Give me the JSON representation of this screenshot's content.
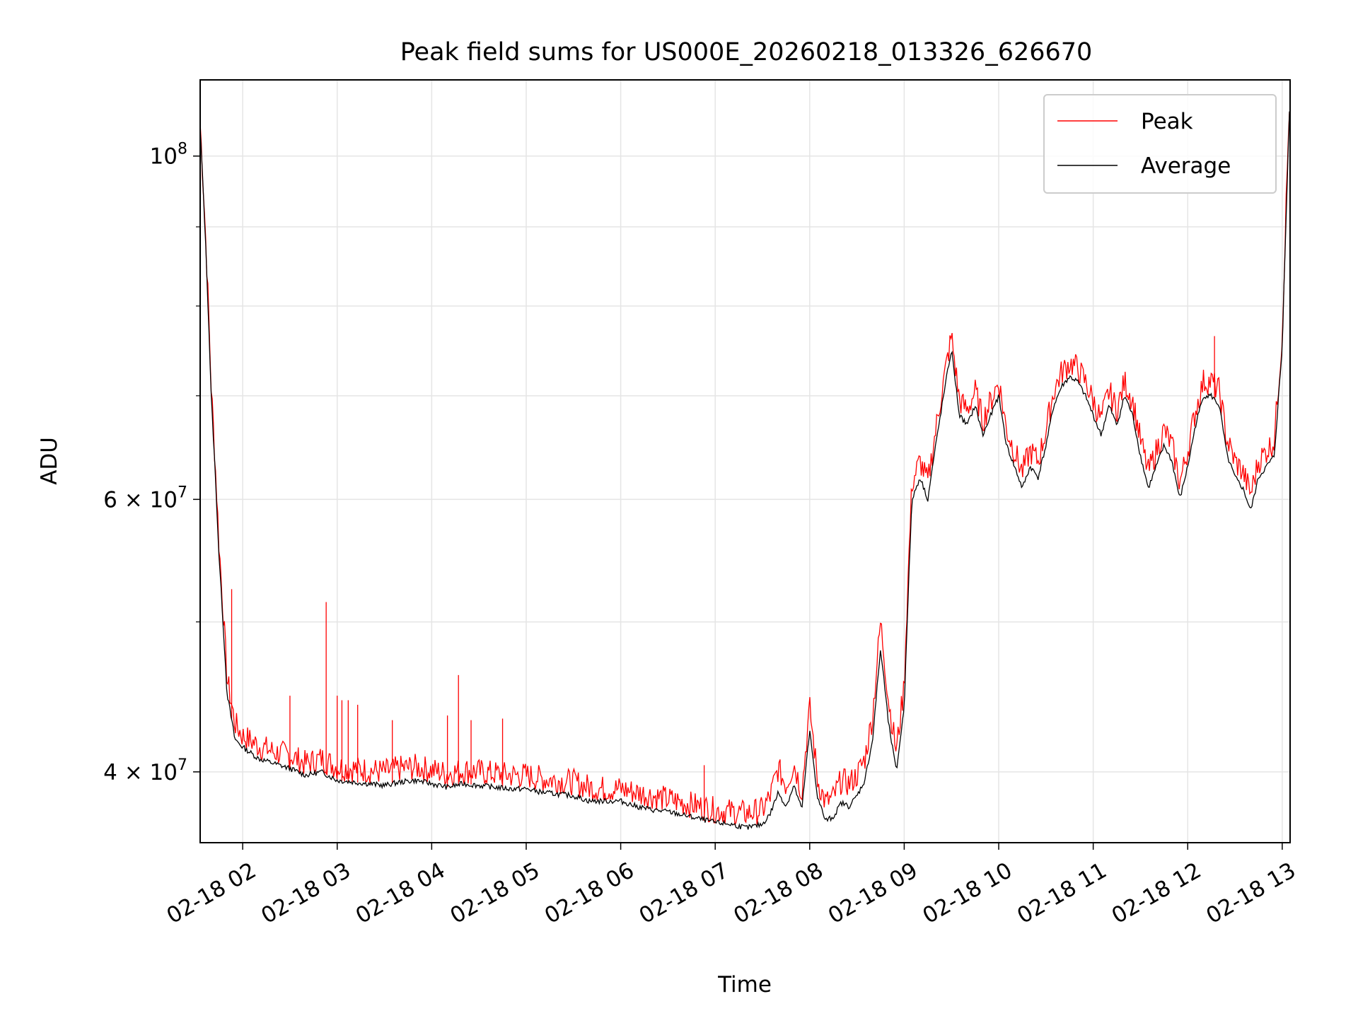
{
  "chart_data": {
    "type": "line",
    "title": "Peak field sums for US000E_20260218_013326_626670",
    "xlabel": "Time",
    "ylabel": "ADU",
    "yscale": "log",
    "ylim": [
      36000000,
      112000000
    ],
    "xlim": [
      "02-18 01:33",
      "02-18 13:05"
    ],
    "grid": true,
    "legend_position": "top-right",
    "x_ticks": [
      "02-18 02",
      "02-18 03",
      "02-18 04",
      "02-18 05",
      "02-18 06",
      "02-18 07",
      "02-18 08",
      "02-18 09",
      "02-18 10",
      "02-18 11",
      "02-18 12",
      "02-18 13"
    ],
    "y_ticks": [
      {
        "value": 40000000,
        "mantissa": "4",
        "times": "×",
        "base": "10",
        "exp": "7"
      },
      {
        "value": 60000000,
        "mantissa": "6",
        "times": "×",
        "base": "10",
        "exp": "7"
      },
      {
        "value": 100000000,
        "mantissa": "",
        "times": "",
        "base": "10",
        "exp": "8"
      }
    ],
    "series": [
      {
        "name": "Peak",
        "color": "#ff0000"
      },
      {
        "name": "Average",
        "color": "#000000"
      }
    ],
    "x": [
      "01:33",
      "01:36",
      "01:40",
      "01:45",
      "01:50",
      "01:55",
      "02:00",
      "02:10",
      "02:20",
      "02:30",
      "02:40",
      "02:50",
      "03:00",
      "03:10",
      "03:20",
      "03:30",
      "03:40",
      "03:50",
      "04:00",
      "04:10",
      "04:20",
      "04:30",
      "04:40",
      "04:50",
      "05:00",
      "05:10",
      "05:20",
      "05:30",
      "05:40",
      "05:50",
      "06:00",
      "06:10",
      "06:20",
      "06:30",
      "06:40",
      "06:50",
      "07:00",
      "07:10",
      "07:20",
      "07:30",
      "07:35",
      "07:40",
      "07:45",
      "07:50",
      "07:55",
      "08:00",
      "08:05",
      "08:10",
      "08:15",
      "08:20",
      "08:25",
      "08:30",
      "08:35",
      "08:40",
      "08:45",
      "08:50",
      "08:55",
      "09:00",
      "09:05",
      "09:10",
      "09:15",
      "09:20",
      "09:25",
      "09:30",
      "09:35",
      "09:40",
      "09:45",
      "09:50",
      "09:55",
      "10:00",
      "10:05",
      "10:10",
      "10:15",
      "10:20",
      "10:25",
      "10:30",
      "10:35",
      "10:40",
      "10:45",
      "10:50",
      "10:55",
      "11:00",
      "11:05",
      "11:10",
      "11:15",
      "11:20",
      "11:25",
      "11:30",
      "11:35",
      "11:40",
      "11:45",
      "11:50",
      "11:55",
      "12:00",
      "12:05",
      "12:10",
      "12:15",
      "12:20",
      "12:25",
      "12:30",
      "12:35",
      "12:40",
      "12:45",
      "12:50",
      "12:55",
      "13:00",
      "13:03",
      "13:05"
    ],
    "average": [
      104,
      90,
      70,
      55,
      45,
      42,
      41.5,
      40.8,
      40.5,
      40.2,
      39.8,
      40.0,
      39.5,
      39.4,
      39.3,
      39.2,
      39.4,
      39.5,
      39.3,
      39.1,
      39.3,
      39.2,
      39.1,
      39.0,
      39.0,
      38.8,
      38.7,
      38.6,
      38.3,
      38.3,
      38.3,
      38.0,
      37.8,
      37.7,
      37.5,
      37.3,
      37.1,
      37.0,
      36.8,
      37.0,
      37.6,
      38.8,
      38.0,
      39.2,
      37.8,
      42.5,
      38.5,
      37.2,
      37.4,
      38.2,
      38.0,
      38.6,
      39.5,
      42.0,
      48.0,
      43.0,
      40.0,
      44.0,
      60.0,
      62.0,
      60.0,
      65.0,
      70.0,
      75.0,
      68.0,
      67.0,
      69.0,
      66.0,
      68.0,
      70.0,
      65.0,
      63.0,
      61.0,
      63.0,
      62.0,
      65.0,
      69.0,
      71.0,
      72.0,
      71.5,
      70.0,
      68.0,
      66.0,
      69.0,
      67.0,
      70.0,
      68.0,
      64.0,
      61.0,
      63.0,
      65.0,
      63.5,
      60.0,
      63.0,
      67.0,
      70.0,
      70.0,
      69.0,
      64.0,
      62.0,
      61.0,
      59.0,
      62.0,
      63.0,
      64.0,
      75.0,
      95.0,
      110.0
    ],
    "peak": [
      105,
      91,
      71,
      56,
      46,
      43,
      42.2,
      41.6,
      41.2,
      41.0,
      40.5,
      40.8,
      40.3,
      40.2,
      40.1,
      40.0,
      40.2,
      40.3,
      40.1,
      39.9,
      40.1,
      40.0,
      39.9,
      39.8,
      39.8,
      39.6,
      39.5,
      39.4,
      39.1,
      39.0,
      39.0,
      38.8,
      38.6,
      38.4,
      38.2,
      38.0,
      37.8,
      37.7,
      37.6,
      37.8,
      38.6,
      40.2,
      39.2,
      40.5,
      38.8,
      44.0,
      39.5,
      38.2,
      38.5,
      39.5,
      39.3,
      39.8,
      40.8,
      43.5,
      50.0,
      44.5,
      41.2,
      45.5,
      61.5,
      63.5,
      61.5,
      66.5,
      71.5,
      76.5,
      69.5,
      68.5,
      70.5,
      67.5,
      69.5,
      71.5,
      66.5,
      64.5,
      62.5,
      64.5,
      63.5,
      66.5,
      70.5,
      72.5,
      73.5,
      73.0,
      71.5,
      69.5,
      67.5,
      70.5,
      68.5,
      71.5,
      69.5,
      65.5,
      62.5,
      64.5,
      66.5,
      65.0,
      61.5,
      64.5,
      68.5,
      71.5,
      71.5,
      70.5,
      65.5,
      63.5,
      62.5,
      60.5,
      63.5,
      64.5,
      65.5,
      76.5,
      96.5,
      111.0
    ],
    "spikes": [
      {
        "x": "01:53",
        "y": 52.5
      },
      {
        "x": "02:30",
        "y": 44.8
      },
      {
        "x": "02:53",
        "y": 51.5
      },
      {
        "x": "03:00",
        "y": 44.8
      },
      {
        "x": "03:03",
        "y": 44.5
      },
      {
        "x": "03:07",
        "y": 44.5
      },
      {
        "x": "03:13",
        "y": 44.2
      },
      {
        "x": "03:35",
        "y": 43.2
      },
      {
        "x": "04:10",
        "y": 43.5
      },
      {
        "x": "04:17",
        "y": 46.2
      },
      {
        "x": "04:25",
        "y": 43.2
      },
      {
        "x": "04:45",
        "y": 43.3
      },
      {
        "x": "06:53",
        "y": 40.4
      },
      {
        "x": "12:17",
        "y": 76.5
      }
    ]
  }
}
